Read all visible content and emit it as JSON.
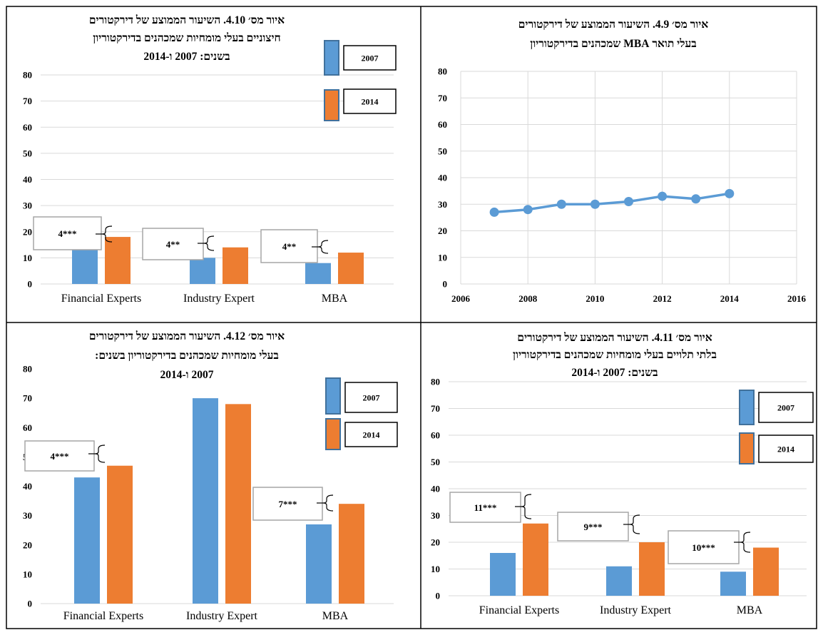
{
  "colors": {
    "s2007": "#5b9bd5",
    "s2014": "#ed7d31",
    "line": "#5b9bd5",
    "grid": "#d9d9d9"
  },
  "chart_data": [
    {
      "id": "c410",
      "type": "bar",
      "title_lines": [
        "איור מס׳ 4.10. השיעור הממוצע של דירקטורים",
        "חיצוניים בעלי מומחיות שמכהנים בדירקטוריון",
        "בשנים: 2007 ו-2014"
      ],
      "categories": [
        "Financial Experts",
        "Industry Expert",
        "MBA"
      ],
      "series": [
        {
          "name": "2007",
          "values": [
            13,
            10,
            8
          ]
        },
        {
          "name": "2014",
          "values": [
            18,
            14,
            12
          ]
        }
      ],
      "yticks": [
        "0",
        "10",
        "20",
        "30",
        "40",
        "50",
        "60",
        "70",
        "80"
      ],
      "ylim": [
        0,
        80
      ],
      "annotations": [
        "4***",
        "4**",
        "4**"
      ],
      "grid": true,
      "legend": "top-right"
    },
    {
      "id": "c49",
      "type": "line",
      "title_lines": [
        "איור מס׳ 4.9. השיעור הממוצע של דירקטורים",
        "בעלי תואר MBA שמכהנים בדירקטוריון"
      ],
      "x": [
        2007,
        2008,
        2009,
        2010,
        2011,
        2012,
        2013,
        2014
      ],
      "y": [
        27,
        28,
        30,
        30,
        31,
        33,
        32,
        34
      ],
      "xticks": [
        "2006",
        "2008",
        "2010",
        "2012",
        "2014",
        "2016"
      ],
      "xlim": [
        2006,
        2016
      ],
      "yticks": [
        "0",
        "10",
        "20",
        "30",
        "40",
        "50",
        "60",
        "70",
        "80"
      ],
      "ylim": [
        0,
        80
      ],
      "grid": true
    },
    {
      "id": "c412",
      "type": "bar",
      "title_lines": [
        "איור מס׳ 4.12. השיעור הממוצע של דירקטורים",
        "בעלי מומחיות שמכהנים  בדירקטוריון בשנים:",
        "2007 ו-2014"
      ],
      "categories": [
        "Financial Experts",
        "Industry Expert",
        "MBA"
      ],
      "series": [
        {
          "name": "2007",
          "values": [
            43,
            70,
            27
          ]
        },
        {
          "name": "2014",
          "values": [
            47,
            68,
            34
          ]
        }
      ],
      "yticks": [
        "0",
        "10",
        "20",
        "30",
        "40",
        "50",
        "60",
        "70",
        "80"
      ],
      "ylim": [
        0,
        80
      ],
      "annotations": [
        "4***",
        "",
        "7***"
      ],
      "grid": false,
      "legend": "top-right"
    },
    {
      "id": "c411",
      "type": "bar",
      "title_lines": [
        "איור מס׳ 4.11. השיעור הממוצע של דירקטורים",
        "בלתי תלויים בעלי מומחיות שמכהנים בדירקטוריון",
        "בשנים: 2007 ו-2014"
      ],
      "categories": [
        "Financial Experts",
        "Industry Expert",
        "MBA"
      ],
      "series": [
        {
          "name": "2007",
          "values": [
            16,
            11,
            9
          ]
        },
        {
          "name": "2014",
          "values": [
            27,
            20,
            18
          ]
        }
      ],
      "yticks": [
        "0",
        "10",
        "20",
        "30",
        "40",
        "50",
        "60",
        "70",
        "80"
      ],
      "ylim": [
        0,
        80
      ],
      "annotations": [
        "11***",
        "9***",
        "10***"
      ],
      "grid": true,
      "legend": "top-right"
    }
  ]
}
